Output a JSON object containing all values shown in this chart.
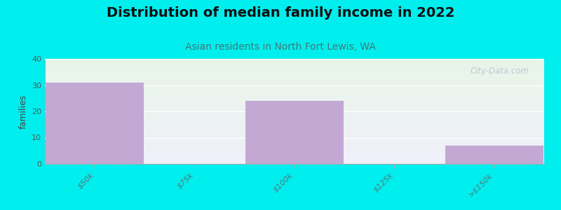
{
  "title": "Distribution of median family income in 2022",
  "subtitle": "Asian residents in North Fort Lewis, WA",
  "categories": [
    "$50k",
    "$75k",
    "$100k",
    "$125k",
    ">$150k"
  ],
  "values": [
    31,
    0,
    24,
    0,
    7
  ],
  "bar_color": "#c4a8d4",
  "ylabel": "families",
  "ylim": [
    0,
    40
  ],
  "yticks": [
    0,
    10,
    20,
    30,
    40
  ],
  "background_color": "#00EEEE",
  "plot_bg_top_left": "#e8f5e8",
  "plot_bg_bottom_right": "#f0f0fa",
  "watermark": "City-Data.com",
  "title_fontsize": 14,
  "subtitle_fontsize": 10,
  "bar_width": 0.98
}
